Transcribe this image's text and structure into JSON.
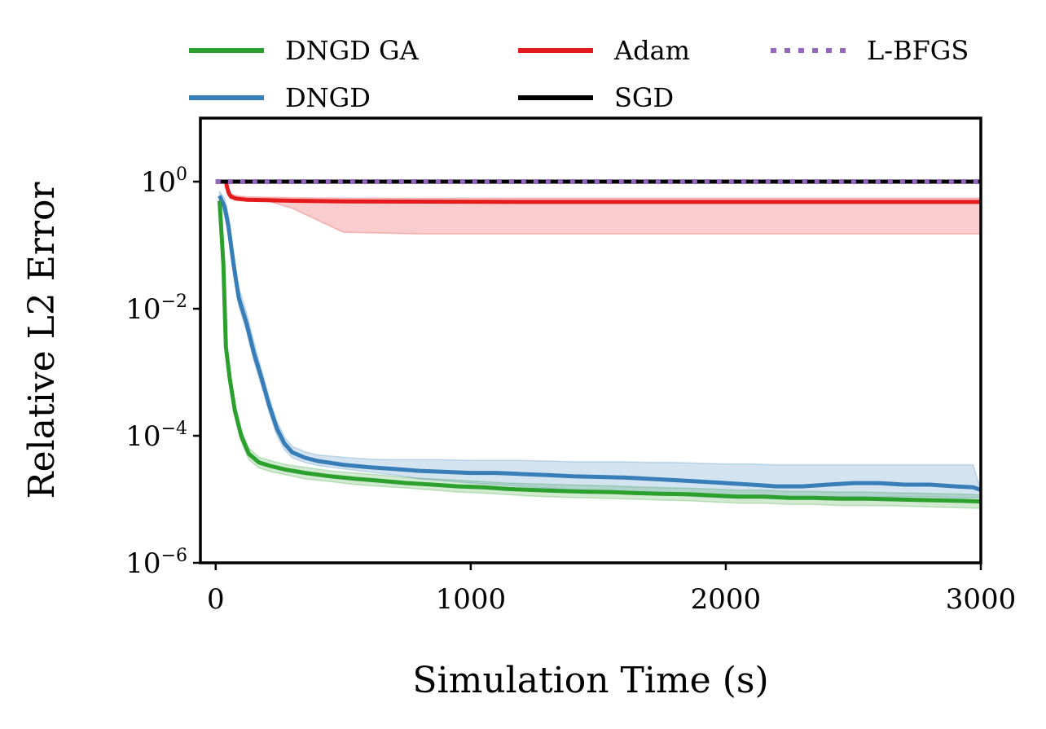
{
  "chart_data": {
    "type": "line",
    "title": "",
    "xlabel": "Simulation Time (s)",
    "ylabel": "Relative L2 Error",
    "xlim": [
      -60,
      3000
    ],
    "ylim_log10": [
      -6,
      1
    ],
    "yscale": "log",
    "grid": false,
    "legend_position": "top (above plot, 3 columns)",
    "x_ticks": [
      {
        "value": 0,
        "label": "0"
      },
      {
        "value": 1000,
        "label": "1000"
      },
      {
        "value": 2000,
        "label": "2000"
      },
      {
        "value": 3000,
        "label": "3000"
      }
    ],
    "y_ticks": [
      {
        "log10": 0,
        "mant": "10",
        "exp": "0"
      },
      {
        "log10": -2,
        "mant": "10",
        "exp": "−2"
      },
      {
        "log10": -4,
        "mant": "10",
        "exp": "−4"
      },
      {
        "log10": -6,
        "mant": "10",
        "exp": "−6"
      }
    ],
    "series": [
      {
        "name": "DNGD GA",
        "color": "#2ca02c",
        "style": "solid",
        "x": [
          15,
          30,
          40,
          55,
          75,
          100,
          130,
          170,
          220,
          280,
          350,
          450,
          550,
          650,
          750,
          850,
          950,
          1050,
          1150,
          1250,
          1350,
          1450,
          1550,
          1650,
          1750,
          1850,
          1950,
          2050,
          2150,
          2250,
          2350,
          2450,
          2550,
          2650,
          2750,
          2850,
          2950,
          3000
        ],
        "y": [
          0.5,
          0.05,
          0.0025,
          0.0008,
          0.00025,
          0.0001,
          5.2e-05,
          3.8e-05,
          3.3e-05,
          2.9e-05,
          2.6e-05,
          2.3e-05,
          2.1e-05,
          1.95e-05,
          1.8e-05,
          1.7e-05,
          1.6e-05,
          1.55e-05,
          1.45e-05,
          1.4e-05,
          1.35e-05,
          1.32e-05,
          1.3e-05,
          1.25e-05,
          1.22e-05,
          1.2e-05,
          1.15e-05,
          1.1e-05,
          1.1e-05,
          1.05e-05,
          1.05e-05,
          1.02e-05,
          1.02e-05,
          1e-05,
          9.8e-06,
          9.6e-06,
          9.4e-06,
          9.2e-06
        ],
        "band_lower": [
          0.4,
          0.03,
          0.0018,
          0.0006,
          0.0002,
          8e-05,
          4.2e-05,
          3.1e-05,
          2.7e-05,
          2.4e-05,
          2.1e-05,
          1.9e-05,
          1.7e-05,
          1.6e-05,
          1.5e-05,
          1.4e-05,
          1.3e-05,
          1.25e-05,
          1.18e-05,
          1.12e-05,
          1.08e-05,
          1.05e-05,
          1.03e-05,
          1e-05,
          9.7e-06,
          9.5e-06,
          9.1e-06,
          8.7e-06,
          8.7e-06,
          8.3e-06,
          8.3e-06,
          8e-06,
          8e-06,
          7.9e-06,
          7.7e-06,
          7.5e-06,
          7.3e-06,
          7.2e-06
        ],
        "band_upper": [
          0.6,
          0.07,
          0.0035,
          0.0011,
          0.00032,
          0.000125,
          6.4e-05,
          4.6e-05,
          4e-05,
          3.5e-05,
          3.2e-05,
          2.8e-05,
          2.6e-05,
          2.4e-05,
          2.2e-05,
          2.1e-05,
          2e-05,
          1.9e-05,
          1.8e-05,
          1.75e-05,
          1.7e-05,
          1.66e-05,
          1.63e-05,
          1.57e-05,
          1.53e-05,
          1.5e-05,
          1.45e-05,
          1.39e-05,
          1.39e-05,
          1.33e-05,
          1.33e-05,
          1.3e-05,
          1.3e-05,
          1.27e-05,
          1.25e-05,
          1.22e-05,
          1.2e-05,
          1.17e-05
        ]
      },
      {
        "name": "DNGD",
        "color": "#377eb8",
        "style": "solid",
        "x": [
          15,
          35,
          50,
          70,
          90,
          120,
          150,
          180,
          210,
          240,
          270,
          300,
          350,
          400,
          500,
          600,
          700,
          800,
          900,
          1000,
          1100,
          1200,
          1300,
          1400,
          1500,
          1600,
          1700,
          1800,
          1900,
          2000,
          2100,
          2200,
          2300,
          2400,
          2500,
          2600,
          2700,
          2800,
          2900,
          2970,
          3000
        ],
        "y": [
          0.6,
          0.4,
          0.2,
          0.05,
          0.015,
          0.006,
          0.002,
          0.0008,
          0.0003,
          0.00013,
          7.5e-05,
          5.5e-05,
          4.5e-05,
          4e-05,
          3.5e-05,
          3.2e-05,
          3e-05,
          2.8e-05,
          2.7e-05,
          2.6e-05,
          2.6e-05,
          2.5e-05,
          2.4e-05,
          2.3e-05,
          2.25e-05,
          2.2e-05,
          2.1e-05,
          2e-05,
          1.9e-05,
          1.8e-05,
          1.7e-05,
          1.6e-05,
          1.6e-05,
          1.7e-05,
          1.8e-05,
          1.8e-05,
          1.7e-05,
          1.7e-05,
          1.6e-05,
          1.55e-05,
          1.4e-05
        ],
        "band_lower": [
          0.5,
          0.3,
          0.14,
          0.035,
          0.011,
          0.0045,
          0.0015,
          0.0006,
          0.00023,
          0.0001,
          6e-05,
          4.5e-05,
          3.8e-05,
          3.4e-05,
          3e-05,
          2.7e-05,
          2.4e-05,
          2.1e-05,
          1.95e-05,
          1.8e-05,
          1.7e-05,
          1.6e-05,
          1.5e-05,
          1.4e-05,
          1.35e-05,
          1.3e-05,
          1.2e-05,
          1.15e-05,
          1.1e-05,
          1.05e-05,
          1.05e-05,
          1.05e-05,
          1.05e-05,
          1.1e-05,
          1.1e-05,
          1.1e-05,
          1.1e-05,
          1.1e-05,
          1.05e-05,
          1.05e-05,
          1.05e-05
        ],
        "band_upper": [
          0.7,
          0.55,
          0.3,
          0.075,
          0.022,
          0.009,
          0.003,
          0.0011,
          0.0004,
          0.00017,
          9.5e-05,
          6.8e-05,
          5.6e-05,
          5e-05,
          4.6e-05,
          4.3e-05,
          4.2e-05,
          4.2e-05,
          4.2e-05,
          4.1e-05,
          4.1e-05,
          4.1e-05,
          4e-05,
          3.9e-05,
          3.9e-05,
          3.9e-05,
          3.8e-05,
          3.8e-05,
          3.7e-05,
          3.6e-05,
          3.6e-05,
          3.5e-05,
          3.5e-05,
          3.5e-05,
          3.5e-05,
          3.5e-05,
          3.5e-05,
          3.5e-05,
          3.5e-05,
          3.5e-05,
          1.4e-05
        ]
      },
      {
        "name": "Adam",
        "color": "#e41a1c",
        "style": "solid",
        "x": [
          40,
          45,
          52,
          60,
          80,
          120,
          200,
          300,
          500,
          800,
          1200,
          1600,
          2000,
          2500,
          3000
        ],
        "y": [
          1.0,
          0.8,
          0.65,
          0.58,
          0.54,
          0.52,
          0.51,
          0.5,
          0.49,
          0.485,
          0.48,
          0.48,
          0.48,
          0.48,
          0.48
        ],
        "band_lower": [
          1.0,
          0.8,
          0.65,
          0.58,
          0.54,
          0.52,
          0.5,
          0.38,
          0.16,
          0.15,
          0.15,
          0.15,
          0.15,
          0.15,
          0.15
        ],
        "band_upper": [
          1.0,
          0.85,
          0.72,
          0.64,
          0.6,
          0.58,
          0.57,
          0.56,
          0.55,
          0.55,
          0.55,
          0.55,
          0.55,
          0.55,
          0.55
        ]
      },
      {
        "name": "SGD",
        "color": "#000000",
        "style": "solid",
        "x": [
          0,
          3000
        ],
        "y": [
          1.0,
          1.0
        ]
      },
      {
        "name": "L-BFGS",
        "color": "#9467bd",
        "style": "dotted",
        "x": [
          0,
          3000
        ],
        "y": [
          1.0,
          1.0
        ]
      }
    ]
  }
}
